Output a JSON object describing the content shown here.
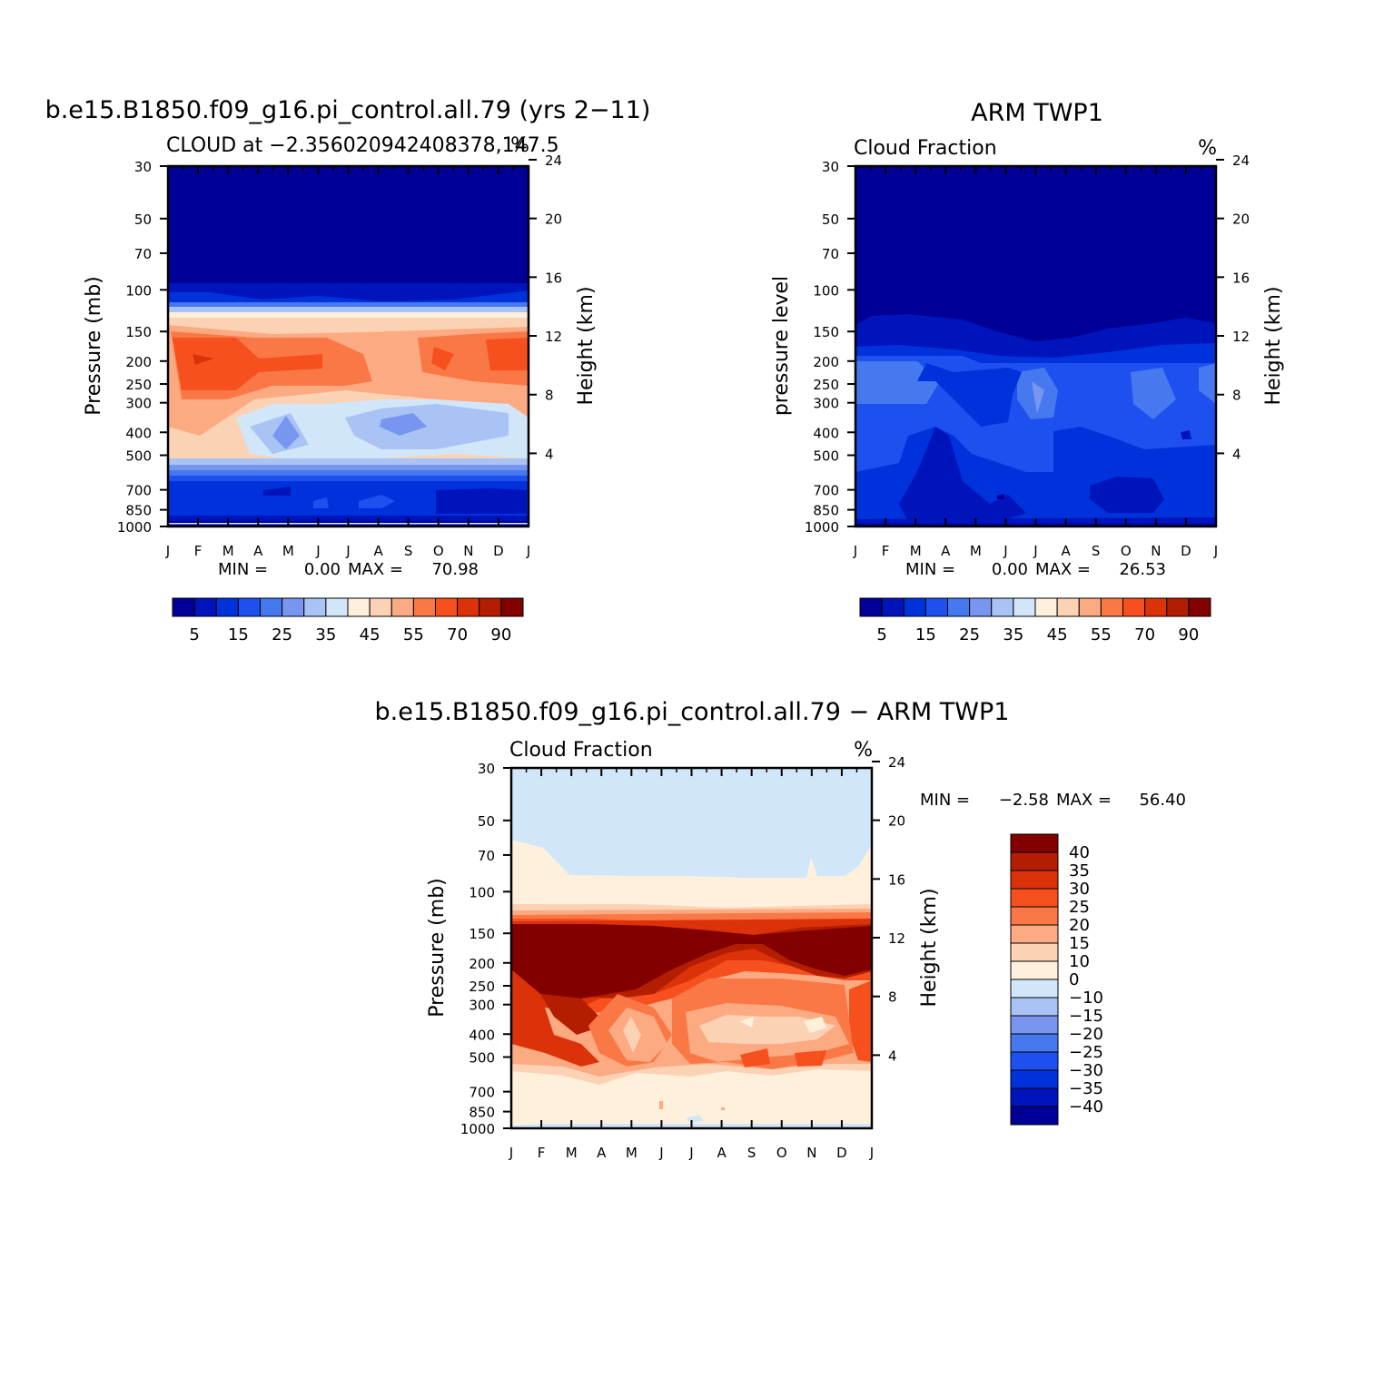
{
  "chart_data": [
    {
      "type": "heatmap",
      "id": "model",
      "title": "b.e15.B1850.f09_g16.pi_control.all.79 (yrs 2−11)",
      "subtitle_left": "CLOUD at −2.356020942408378,147.5",
      "subtitle_right": "%",
      "ylabel_left": "Pressure (mb)",
      "ylabel_right": "Height (km)",
      "x_ticks": [
        "J",
        "F",
        "M",
        "A",
        "M",
        "J",
        "J",
        "A",
        "S",
        "O",
        "N",
        "D",
        "J"
      ],
      "pressure_ticks": [
        "30",
        "50",
        "70",
        "100",
        "150",
        "200",
        "250",
        "300",
        "400",
        "500",
        "700",
        "850",
        "1000"
      ],
      "height_ticks": [
        "24",
        "20",
        "16",
        "12",
        "8",
        "4"
      ],
      "min_label": "MIN =",
      "min_value": "0.00",
      "max_label": "MAX =",
      "max_value": "70.98",
      "colorbar_labels": [
        "5",
        "15",
        "25",
        "35",
        "45",
        "55",
        "70",
        "90"
      ],
      "colorbar_colors": [
        "#000096",
        "#0014bc",
        "#0032dc",
        "#1e50f0",
        "#4678f0",
        "#7896f0",
        "#aac3f5",
        "#d2e6fa",
        "#fff0dc",
        "#fcd2b4",
        "#fcaa82",
        "#fa7846",
        "#f5501e",
        "#dc320a",
        "#b41e00",
        "#820000"
      ]
    },
    {
      "type": "heatmap",
      "id": "obs",
      "title": "ARM TWP1",
      "subtitle_left": "Cloud Fraction",
      "subtitle_right": "%",
      "ylabel_left": "pressure level",
      "ylabel_right": "Height (km)",
      "x_ticks": [
        "J",
        "F",
        "M",
        "A",
        "M",
        "J",
        "J",
        "A",
        "S",
        "O",
        "N",
        "D",
        "J"
      ],
      "pressure_ticks": [
        "30",
        "50",
        "70",
        "100",
        "150",
        "200",
        "250",
        "300",
        "400",
        "500",
        "700",
        "850",
        "1000"
      ],
      "height_ticks": [
        "24",
        "20",
        "16",
        "12",
        "8",
        "4"
      ],
      "min_label": "MIN =",
      "min_value": "0.00",
      "max_label": "MAX =",
      "max_value": "26.53",
      "colorbar_labels": [
        "5",
        "15",
        "25",
        "35",
        "45",
        "55",
        "70",
        "90"
      ],
      "colorbar_colors": [
        "#000096",
        "#0014bc",
        "#0032dc",
        "#1e50f0",
        "#4678f0",
        "#7896f0",
        "#aac3f5",
        "#d2e6fa",
        "#fff0dc",
        "#fcd2b4",
        "#fcaa82",
        "#fa7846",
        "#f5501e",
        "#dc320a",
        "#b41e00",
        "#820000"
      ]
    },
    {
      "type": "heatmap",
      "id": "diff",
      "title": "b.e15.B1850.f09_g16.pi_control.all.79 − ARM TWP1",
      "subtitle_left": "Cloud Fraction",
      "subtitle_right": "%",
      "ylabel_left": "Pressure (mb)",
      "ylabel_right": "Height (km)",
      "x_ticks": [
        "J",
        "F",
        "M",
        "A",
        "M",
        "J",
        "J",
        "A",
        "S",
        "O",
        "N",
        "D",
        "J"
      ],
      "pressure_ticks": [
        "30",
        "50",
        "70",
        "100",
        "150",
        "200",
        "250",
        "300",
        "400",
        "500",
        "700",
        "850",
        "1000"
      ],
      "height_ticks": [
        "24",
        "20",
        "16",
        "12",
        "8",
        "4"
      ],
      "min_label": "MIN =",
      "min_value": "−2.58",
      "max_label": "MAX =",
      "max_value": "56.40",
      "colorbar_labels": [
        "40",
        "35",
        "30",
        "25",
        "20",
        "15",
        "10",
        "0",
        "−10",
        "−15",
        "−20",
        "−25",
        "−30",
        "−35",
        "−40"
      ],
      "colorbar_colors": [
        "#820000",
        "#b41e00",
        "#dc320a",
        "#f5501e",
        "#fa7846",
        "#fcaa82",
        "#fcd2b4",
        "#fff0dc",
        "#d2e6fa",
        "#aac3f5",
        "#7896f0",
        "#4678f0",
        "#1e50f0",
        "#0032dc",
        "#0014bc",
        "#000096"
      ]
    }
  ]
}
